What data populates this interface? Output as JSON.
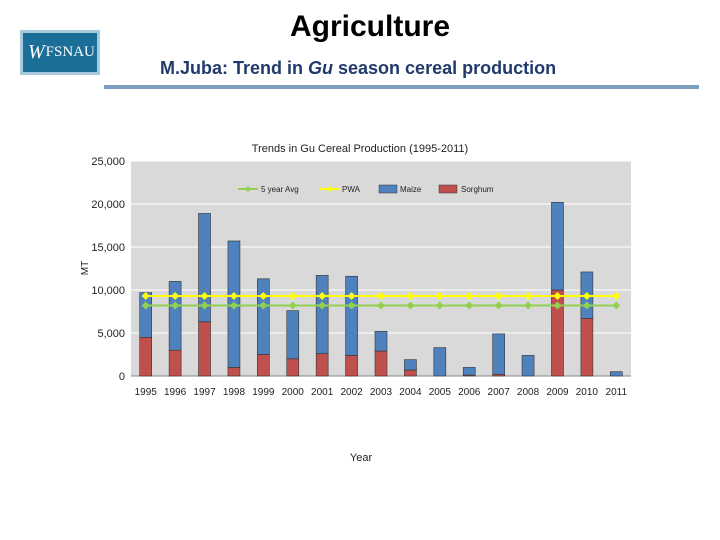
{
  "header": {
    "title": "Agriculture",
    "logo_text": "FSNAU",
    "subtitle_prefix": "M.Juba: Trend in ",
    "subtitle_italic": "Gu",
    "subtitle_suffix": " season cereal production"
  },
  "colors": {
    "maize": "#4f81bd",
    "sorghum": "#c0504d",
    "avg": "#92d050",
    "pwa": "#ffff00",
    "plot_bg": "#d9d9d9",
    "grid": "#ffffff"
  },
  "chart_data": {
    "type": "bar",
    "stacked": true,
    "title": "Trends in Gu Cereal Production  (1995-2011)",
    "xlabel": "Year",
    "ylabel": "MT",
    "ylim": [
      0,
      25000
    ],
    "yticks": [
      0,
      5000,
      10000,
      15000,
      20000,
      25000
    ],
    "ytick_labels": [
      "0",
      "5,000",
      "10,000",
      "15,000",
      "20,000",
      "25,000"
    ],
    "grid": true,
    "legend_position": "top",
    "categories": [
      "1995",
      "1996",
      "1997",
      "1998",
      "1999",
      "2000",
      "2001",
      "2002",
      "2003",
      "2004",
      "2005",
      "2006",
      "2007",
      "2008",
      "2009",
      "2010",
      "2011"
    ],
    "bar_series": [
      {
        "name": "Sorghum",
        "values": [
          4500,
          3000,
          6300,
          1000,
          2500,
          2000,
          2600,
          2400,
          2900,
          700,
          0,
          100,
          200,
          0,
          10000,
          6700,
          0
        ]
      },
      {
        "name": "Maize",
        "values": [
          5200,
          8000,
          12600,
          14700,
          8800,
          5600,
          9100,
          9200,
          2300,
          1200,
          3300,
          900,
          4700,
          2400,
          10200,
          5400,
          500
        ]
      }
    ],
    "line_series": [
      {
        "name": "5 year Avg",
        "values": [
          8200,
          8200,
          8200,
          8200,
          8200,
          8200,
          8200,
          8200,
          8200,
          8200,
          8200,
          8200,
          8200,
          8200,
          8200,
          8200,
          8200
        ]
      },
      {
        "name": "PWA",
        "values": [
          9300,
          9300,
          9300,
          9300,
          9300,
          9300,
          9300,
          9300,
          9300,
          9300,
          9300,
          9300,
          9300,
          9300,
          9300,
          9300,
          9300
        ]
      }
    ],
    "legend": [
      "5 year Avg",
      "PWA",
      "Maize",
      "Sorghum"
    ]
  }
}
